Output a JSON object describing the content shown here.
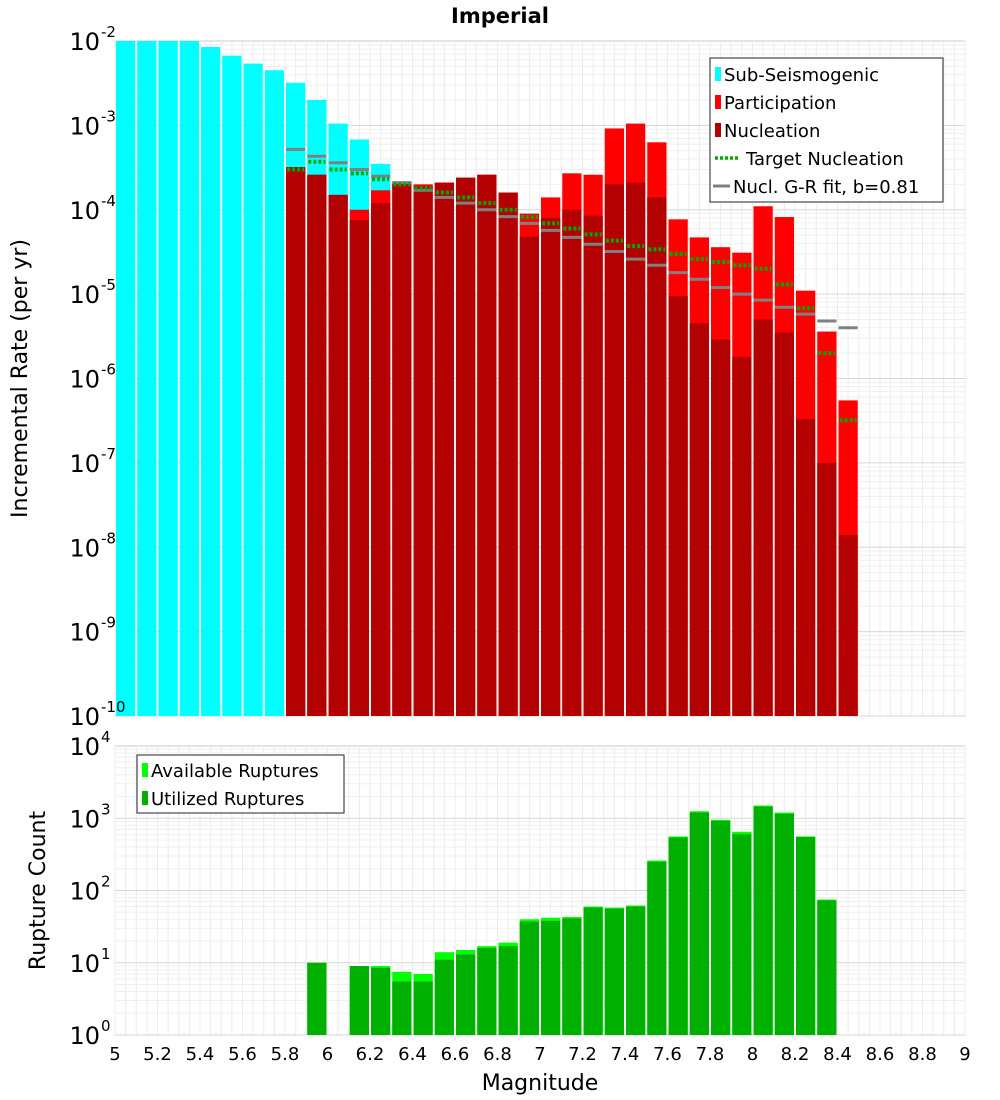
{
  "chart_data": [
    {
      "type": "bar",
      "title": "Imperial",
      "ylabel": "Incremental Rate (per yr)",
      "xlabel": "",
      "xlim": [
        5,
        9
      ],
      "ylim_exp": [
        -10,
        -2
      ],
      "yscale": "log",
      "grid": true,
      "legend_position": "top-right",
      "legend": [
        "Sub-Seismogenic",
        "Participation",
        "Nucleation",
        "Target Nucleation",
        "Nucl. G-R fit, b=0.81"
      ],
      "colors": {
        "sub": "#00ffff",
        "participation": "#ff0000",
        "nucleation": "#b30000",
        "target": "#00aa00",
        "gr": "#808080"
      },
      "sub_seismogenic": {
        "x": [
          5.05,
          5.15,
          5.25,
          5.35,
          5.45,
          5.55,
          5.65,
          5.75,
          5.85,
          5.95,
          6.05,
          6.15,
          6.25
        ],
        "values": [
          0.01,
          0.01,
          0.01,
          0.01,
          0.0085,
          0.0067,
          0.0054,
          0.0045,
          0.0032,
          0.002,
          0.00105,
          0.00068,
          0.00035
        ]
      },
      "participation": {
        "x": [
          5.85,
          5.95,
          6.05,
          6.15,
          6.25,
          6.35,
          6.45,
          6.55,
          6.65,
          6.75,
          6.85,
          6.95,
          7.05,
          7.15,
          7.25,
          7.35,
          7.45,
          7.55,
          7.65,
          7.75,
          7.85,
          7.95,
          8.05,
          8.15,
          8.25,
          8.35,
          8.45
        ],
        "values": [
          0.00032,
          0.00026,
          0.00015,
          0.0001,
          0.00017,
          0.00021,
          0.0002,
          0.00021,
          0.00024,
          0.00026,
          0.00016,
          9e-05,
          0.00014,
          0.00027,
          0.00026,
          0.00092,
          0.00105,
          0.00063,
          7.7e-05,
          4.7e-05,
          3.6e-05,
          3.1e-05,
          0.00011,
          8.2e-05,
          1.1e-05,
          3.6e-06,
          5.5e-07
        ]
      },
      "nucleation": {
        "x": [
          5.85,
          5.95,
          6.05,
          6.15,
          6.25,
          6.35,
          6.45,
          6.55,
          6.65,
          6.75,
          6.85,
          6.95,
          7.05,
          7.15,
          7.25,
          7.35,
          7.45,
          7.55,
          7.65,
          7.75,
          7.85,
          7.95,
          8.05,
          8.15,
          8.25,
          8.35,
          8.45
        ],
        "values": [
          0.00032,
          0.00026,
          0.00015,
          7.5e-05,
          0.00012,
          0.00021,
          0.00019,
          0.00021,
          0.00024,
          0.00026,
          0.00016,
          4.8e-05,
          8e-05,
          0.0001,
          8.5e-05,
          0.0002,
          0.00021,
          0.00014,
          9.5e-06,
          4.5e-06,
          2.9e-06,
          1.8e-06,
          5e-06,
          3.5e-06,
          3.3e-07,
          1e-07,
          1.4e-08
        ]
      },
      "target_nucleation": {
        "x": [
          5.85,
          5.95,
          6.05,
          6.15,
          6.25,
          6.35,
          6.45,
          6.55,
          6.65,
          6.75,
          6.85,
          6.95,
          7.05,
          7.15,
          7.25,
          7.35,
          7.45,
          7.55,
          7.65,
          7.75,
          7.85,
          7.95,
          8.05,
          8.15,
          8.25,
          8.35,
          8.45
        ],
        "values": [
          0.0003,
          0.00037,
          0.0003,
          0.00027,
          0.00023,
          0.0002,
          0.00018,
          0.00016,
          0.00014,
          0.00012,
          0.0001,
          8.2e-05,
          6.9e-05,
          6e-05,
          5.1e-05,
          4.3e-05,
          3.7e-05,
          3.4e-05,
          3e-05,
          2.6e-05,
          2.4e-05,
          2.2e-05,
          2e-05,
          1.3e-05,
          6.8e-06,
          2e-06,
          3.2e-07
        ]
      },
      "gr_fit": {
        "x": [
          5.85,
          5.95,
          6.05,
          6.15,
          6.25,
          6.35,
          6.45,
          6.55,
          6.65,
          6.75,
          6.85,
          6.95,
          7.05,
          7.15,
          7.25,
          7.35,
          7.45,
          7.55,
          7.65,
          7.75,
          7.85,
          7.95,
          8.05,
          8.15,
          8.25,
          8.35,
          8.45
        ],
        "values": [
          0.00052,
          0.00043,
          0.00036,
          0.0003,
          0.00025,
          0.00021,
          0.00017,
          0.00014,
          0.00012,
          0.0001,
          8.3e-05,
          6.9e-05,
          5.7e-05,
          4.7e-05,
          3.9e-05,
          3.2e-05,
          2.6e-05,
          2.2e-05,
          1.8e-05,
          1.5e-05,
          1.2e-05,
          1e-05,
          8.5e-06,
          7e-06,
          5.8e-06,
          4.8e-06,
          4e-06
        ]
      }
    },
    {
      "type": "bar",
      "title": "",
      "xlabel": "Magnitude",
      "ylabel": "Rupture Count",
      "xlim": [
        5,
        9
      ],
      "ylim_exp": [
        0,
        4
      ],
      "yscale": "log",
      "grid": true,
      "legend_position": "top-left",
      "legend": [
        "Available Ruptures",
        "Utilized Ruptures"
      ],
      "colors": {
        "available": "#00ff00",
        "utilized": "#00b000"
      },
      "x_ticks": [
        "5",
        "5.2",
        "5.4",
        "5.6",
        "5.8",
        "6",
        "6.2",
        "6.4",
        "6.6",
        "6.8",
        "7",
        "7.2",
        "7.4",
        "7.6",
        "7.8",
        "8",
        "8.2",
        "8.4",
        "8.6",
        "8.8",
        "9"
      ],
      "available": {
        "x": [
          5.95,
          6.15,
          6.25,
          6.35,
          6.45,
          6.55,
          6.65,
          6.75,
          6.85,
          6.95,
          7.05,
          7.15,
          7.25,
          7.35,
          7.45,
          7.55,
          7.65,
          7.75,
          7.85,
          7.95,
          8.05,
          8.15,
          8.25,
          8.35
        ],
        "values": [
          10,
          9,
          9,
          7.5,
          7,
          14,
          15,
          17,
          19,
          40,
          42,
          43,
          60,
          58,
          62,
          260,
          560,
          1250,
          950,
          650,
          1500,
          1200,
          560,
          75
        ]
      },
      "utilized": {
        "x": [
          5.95,
          6.15,
          6.25,
          6.35,
          6.45,
          6.55,
          6.65,
          6.75,
          6.85,
          6.95,
          7.05,
          7.15,
          7.25,
          7.35,
          7.45,
          7.55,
          7.65,
          7.75,
          7.85,
          7.95,
          8.05,
          8.15,
          8.25,
          8.35
        ],
        "values": [
          10,
          9,
          8.5,
          5.5,
          5.5,
          11,
          13,
          16,
          17,
          37,
          38,
          41,
          58,
          56,
          60,
          250,
          540,
          1200,
          920,
          600,
          1450,
          1150,
          550,
          73
        ]
      }
    }
  ]
}
